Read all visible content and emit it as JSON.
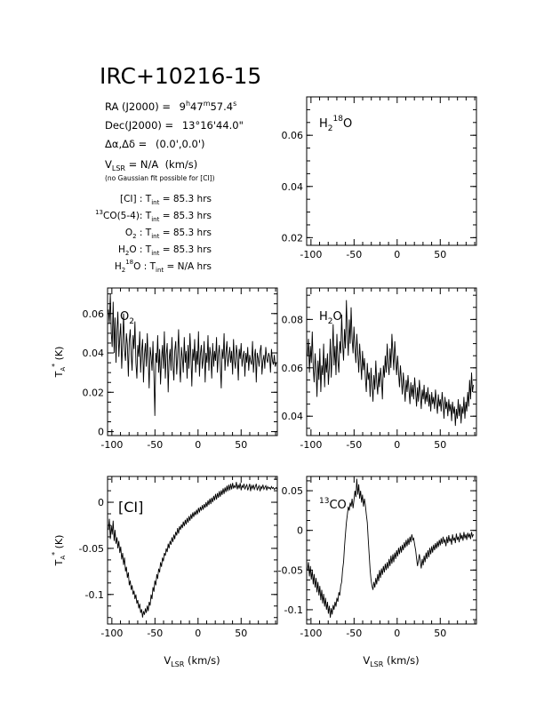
{
  "header": {
    "title": "IRC+10216-15",
    "ra_label": "RA (J2000)  =",
    "ra_value": "9",
    "ra_h": "h",
    "ra_m_value": "47",
    "ra_m": "m",
    "ra_s_value": "57.4",
    "ra_s": "s",
    "dec_label": "Dec(J2000)  =",
    "dec_value": "13°16'44.0\"",
    "offset_label": "Δα,Δδ  =",
    "offset_value": "(0.0',0.0')",
    "vlsr_label": "V",
    "vlsr_sub": "LSR",
    "vlsr_value": " = N/A  (km/s)",
    "note": "(no Gaussian fit possible for [CI])",
    "integrations": [
      {
        "label": "[CI] : T",
        "sub": "int",
        "value": "= 85.3 hrs"
      },
      {
        "label": "CO(5-4): T",
        "sup": "13",
        "sub": "int",
        "value": "= 85.3 hrs"
      },
      {
        "label": "O",
        "sub2": "2",
        "label2": " : T",
        "sub": "int",
        "value": "= 85.3 hrs"
      },
      {
        "label": "H",
        "sub2": "2",
        "label2": "O : T",
        "sub": "int",
        "value": "= 85.3 hrs"
      },
      {
        "label": "H",
        "sub2": "2",
        "sup": "18",
        "label2": "O : T",
        "sub": "int",
        "value": "= N/A hrs"
      }
    ]
  },
  "axis_text": {
    "ylabel": "T",
    "ylabel_sub": "A",
    "ylabel_sup": "*",
    "ylabel_unit": " (K)",
    "xlabel": "V",
    "xlabel_sub": "LSR",
    "xlabel_unit": " (km/s)"
  },
  "chart_data": [
    {
      "type": "line",
      "label": "H218O",
      "label_main": "H",
      "label_sub": "2",
      "label_sup": "18",
      "label_end": "O",
      "xlim": [
        -105,
        92
      ],
      "ylim": [
        0.017,
        0.075
      ],
      "xticks": [
        -100,
        -50,
        0,
        50
      ],
      "yticks": [
        0.02,
        0.04,
        0.06
      ],
      "ytick_labels": [
        "0.02",
        "0.04",
        "0.06"
      ],
      "has_data": false,
      "series": []
    },
    {
      "type": "line",
      "label": "O2",
      "label_main": "O",
      "label_sub": "2",
      "xlim": [
        -105,
        92
      ],
      "ylim": [
        -0.002,
        0.073
      ],
      "xticks": [
        -100,
        -50,
        0,
        50
      ],
      "yticks": [
        0,
        0.02,
        0.04,
        0.06
      ],
      "ytick_labels": [
        "0",
        "0.02",
        "0.04",
        "0.06"
      ],
      "has_data": true,
      "x_start": -104,
      "x_step": 1.1,
      "values": [
        0.062,
        0.055,
        0.07,
        0.05,
        0.043,
        0.066,
        0.04,
        0.058,
        0.035,
        0.052,
        0.061,
        0.038,
        0.048,
        0.055,
        0.032,
        0.045,
        0.06,
        0.041,
        0.036,
        0.05,
        0.044,
        0.028,
        0.046,
        0.052,
        0.039,
        0.031,
        0.049,
        0.042,
        0.056,
        0.035,
        0.027,
        0.044,
        0.038,
        0.051,
        0.03,
        0.041,
        0.047,
        0.025,
        0.039,
        0.045,
        0.033,
        0.05,
        0.036,
        0.022,
        0.043,
        0.038,
        0.031,
        0.046,
        0.028,
        0.008,
        0.04,
        0.035,
        0.049,
        0.03,
        0.042,
        0.024,
        0.037,
        0.044,
        0.032,
        0.051,
        0.027,
        0.039,
        0.045,
        0.02,
        0.036,
        0.042,
        0.031,
        0.048,
        0.034,
        0.026,
        0.041,
        0.046,
        0.029,
        0.038,
        0.052,
        0.033,
        0.025,
        0.043,
        0.037,
        0.03,
        0.048,
        0.035,
        0.041,
        0.027,
        0.044,
        0.032,
        0.05,
        0.038,
        0.023,
        0.042,
        0.036,
        0.047,
        0.03,
        0.041,
        0.034,
        0.051,
        0.028,
        0.039,
        0.044,
        0.032,
        0.037,
        0.046,
        0.025,
        0.04,
        0.035,
        0.049,
        0.031,
        0.043,
        0.038,
        0.027,
        0.045,
        0.033,
        0.041,
        0.036,
        0.048,
        0.03,
        0.039,
        0.044,
        0.034,
        0.022,
        0.042,
        0.037,
        0.05,
        0.031,
        0.04,
        0.046,
        0.033,
        0.038,
        0.043,
        0.035,
        0.041,
        0.029,
        0.047,
        0.036,
        0.032,
        0.044,
        0.039,
        0.026,
        0.042,
        0.037,
        0.045,
        0.033,
        0.038,
        0.041,
        0.028,
        0.04,
        0.035,
        0.043,
        0.031,
        0.039,
        0.036,
        0.034,
        0.046,
        0.03,
        0.038,
        0.042,
        0.025,
        0.04,
        0.037,
        0.033,
        0.041,
        0.044,
        0.029,
        0.036,
        0.039,
        0.032,
        0.043,
        0.037,
        0.035,
        0.04,
        0.038,
        0.03,
        0.042,
        0.036,
        0.034,
        0.039,
        0.033,
        0.035
      ]
    },
    {
      "type": "line",
      "label": "H2O",
      "label_main": "H",
      "label_sub": "2",
      "label_end": "O",
      "xlim": [
        -105,
        92
      ],
      "ylim": [
        0.032,
        0.093
      ],
      "xticks": [
        -100,
        -50,
        0,
        50
      ],
      "yticks": [
        0.04,
        0.06,
        0.08
      ],
      "ytick_labels": [
        "0.04",
        "0.06",
        "0.08"
      ],
      "has_data": true,
      "x_start": -104,
      "x_step": 1.1,
      "values": [
        0.065,
        0.072,
        0.058,
        0.069,
        0.062,
        0.075,
        0.06,
        0.054,
        0.066,
        0.059,
        0.048,
        0.063,
        0.055,
        0.068,
        0.05,
        0.061,
        0.057,
        0.07,
        0.052,
        0.064,
        0.058,
        0.066,
        0.053,
        0.06,
        0.072,
        0.056,
        0.065,
        0.078,
        0.061,
        0.069,
        0.057,
        0.074,
        0.063,
        0.058,
        0.071,
        0.066,
        0.082,
        0.07,
        0.063,
        0.076,
        0.068,
        0.088,
        0.074,
        0.065,
        0.08,
        0.07,
        0.085,
        0.072,
        0.066,
        0.077,
        0.068,
        0.062,
        0.074,
        0.066,
        0.058,
        0.07,
        0.063,
        0.055,
        0.067,
        0.059,
        0.064,
        0.056,
        0.05,
        0.062,
        0.055,
        0.058,
        0.048,
        0.06,
        0.053,
        0.046,
        0.057,
        0.051,
        0.063,
        0.054,
        0.049,
        0.058,
        0.052,
        0.06,
        0.055,
        0.047,
        0.061,
        0.056,
        0.065,
        0.058,
        0.07,
        0.062,
        0.057,
        0.068,
        0.06,
        0.074,
        0.066,
        0.059,
        0.071,
        0.063,
        0.057,
        0.065,
        0.058,
        0.052,
        0.061,
        0.055,
        0.049,
        0.058,
        0.052,
        0.046,
        0.055,
        0.05,
        0.057,
        0.051,
        0.045,
        0.054,
        0.048,
        0.053,
        0.047,
        0.056,
        0.05,
        0.044,
        0.052,
        0.046,
        0.055,
        0.049,
        0.043,
        0.051,
        0.047,
        0.053,
        0.045,
        0.05,
        0.046,
        0.052,
        0.044,
        0.049,
        0.042,
        0.05,
        0.045,
        0.048,
        0.043,
        0.051,
        0.046,
        0.041,
        0.049,
        0.044,
        0.047,
        0.042,
        0.05,
        0.045,
        0.039,
        0.048,
        0.043,
        0.046,
        0.04,
        0.047,
        0.042,
        0.045,
        0.038,
        0.046,
        0.041,
        0.044,
        0.036,
        0.043,
        0.039,
        0.047,
        0.04,
        0.045,
        0.037,
        0.044,
        0.041,
        0.048,
        0.039,
        0.046,
        0.042,
        0.05,
        0.044,
        0.055,
        0.047,
        0.058,
        0.05,
        0.053
      ]
    },
    {
      "type": "line",
      "label": "[CI]",
      "xlim": [
        -105,
        92
      ],
      "ylim": [
        -0.132,
        0.028
      ],
      "xticks": [
        -100,
        -50,
        0,
        50
      ],
      "yticks": [
        -0.1,
        -0.05,
        0
      ],
      "ytick_labels": [
        "-0.1",
        "-0.05",
        "0"
      ],
      "has_data": true,
      "x_start": -104,
      "x_step": 1.1,
      "values": [
        -0.03,
        -0.018,
        -0.04,
        -0.025,
        -0.035,
        -0.02,
        -0.042,
        -0.03,
        -0.045,
        -0.038,
        -0.05,
        -0.042,
        -0.055,
        -0.048,
        -0.062,
        -0.055,
        -0.068,
        -0.06,
        -0.075,
        -0.07,
        -0.082,
        -0.076,
        -0.09,
        -0.085,
        -0.095,
        -0.09,
        -0.1,
        -0.096,
        -0.105,
        -0.1,
        -0.11,
        -0.106,
        -0.115,
        -0.11,
        -0.12,
        -0.116,
        -0.125,
        -0.118,
        -0.122,
        -0.115,
        -0.12,
        -0.112,
        -0.118,
        -0.108,
        -0.112,
        -0.1,
        -0.105,
        -0.092,
        -0.097,
        -0.085,
        -0.09,
        -0.078,
        -0.083,
        -0.072,
        -0.076,
        -0.065,
        -0.07,
        -0.06,
        -0.064,
        -0.055,
        -0.058,
        -0.05,
        -0.054,
        -0.045,
        -0.05,
        -0.042,
        -0.046,
        -0.038,
        -0.043,
        -0.035,
        -0.04,
        -0.032,
        -0.036,
        -0.028,
        -0.034,
        -0.026,
        -0.03,
        -0.024,
        -0.028,
        -0.021,
        -0.026,
        -0.019,
        -0.024,
        -0.017,
        -0.022,
        -0.015,
        -0.02,
        -0.013,
        -0.018,
        -0.011,
        -0.016,
        -0.01,
        -0.014,
        -0.008,
        -0.013,
        -0.006,
        -0.011,
        -0.005,
        -0.009,
        -0.003,
        -0.008,
        -0.002,
        -0.006,
        0.0,
        -0.005,
        0.002,
        -0.003,
        0.004,
        -0.002,
        0.005,
        0.0,
        0.007,
        0.002,
        0.009,
        0.003,
        0.01,
        0.005,
        0.012,
        0.006,
        0.013,
        0.008,
        0.015,
        0.009,
        0.016,
        0.011,
        0.018,
        0.012,
        0.019,
        0.013,
        0.02,
        0.014,
        0.021,
        0.015,
        0.018,
        0.016,
        0.022,
        0.014,
        0.019,
        0.015,
        0.021,
        0.013,
        0.018,
        0.016,
        0.02,
        0.014,
        0.017,
        0.019,
        0.013,
        0.016,
        0.02,
        0.012,
        0.018,
        0.015,
        0.019,
        0.014,
        0.017,
        0.02,
        0.013,
        0.016,
        0.018,
        0.012,
        0.017,
        0.015,
        0.019,
        0.014,
        0.016,
        0.018,
        0.013,
        0.017,
        0.015,
        0.016,
        0.014,
        0.017,
        0.015,
        0.016,
        0.014,
        0.015,
        0.016,
        0.014,
        0.015
      ]
    },
    {
      "type": "line",
      "label": "13CO",
      "label_sup": "13",
      "label_main": "CO",
      "xlim": [
        -105,
        92
      ],
      "ylim": [
        -0.118,
        0.068
      ],
      "xticks": [
        -100,
        -50,
        0,
        50
      ],
      "yticks": [
        -0.1,
        -0.05,
        0,
        0.05
      ],
      "ytick_labels": [
        "-0.1",
        "-0.05",
        "0",
        "0.05"
      ],
      "has_data": true,
      "x_start": -104,
      "x_step": 1.1,
      "values": [
        -0.05,
        -0.04,
        -0.058,
        -0.045,
        -0.062,
        -0.05,
        -0.068,
        -0.055,
        -0.072,
        -0.06,
        -0.078,
        -0.065,
        -0.082,
        -0.07,
        -0.088,
        -0.075,
        -0.092,
        -0.08,
        -0.096,
        -0.085,
        -0.1,
        -0.09,
        -0.105,
        -0.095,
        -0.11,
        -0.098,
        -0.106,
        -0.094,
        -0.1,
        -0.09,
        -0.096,
        -0.085,
        -0.09,
        -0.078,
        -0.082,
        -0.07,
        -0.065,
        -0.05,
        -0.04,
        -0.02,
        -0.005,
        0.01,
        0.02,
        0.03,
        0.025,
        0.035,
        0.03,
        0.04,
        0.028,
        0.038,
        0.05,
        0.042,
        0.065,
        0.045,
        0.058,
        0.04,
        0.05,
        0.035,
        0.045,
        0.03,
        0.04,
        0.032,
        0.02,
        0.01,
        -0.01,
        -0.03,
        -0.05,
        -0.062,
        -0.07,
        -0.075,
        -0.065,
        -0.072,
        -0.06,
        -0.068,
        -0.055,
        -0.064,
        -0.05,
        -0.06,
        -0.048,
        -0.056,
        -0.045,
        -0.053,
        -0.042,
        -0.05,
        -0.04,
        -0.048,
        -0.036,
        -0.045,
        -0.032,
        -0.042,
        -0.03,
        -0.04,
        -0.028,
        -0.036,
        -0.025,
        -0.033,
        -0.022,
        -0.03,
        -0.02,
        -0.028,
        -0.018,
        -0.025,
        -0.015,
        -0.022,
        -0.012,
        -0.02,
        -0.01,
        -0.018,
        -0.008,
        -0.015,
        -0.005,
        -0.012,
        -0.01,
        -0.018,
        -0.025,
        -0.035,
        -0.045,
        -0.038,
        -0.03,
        -0.04,
        -0.048,
        -0.036,
        -0.044,
        -0.032,
        -0.04,
        -0.028,
        -0.036,
        -0.025,
        -0.034,
        -0.022,
        -0.03,
        -0.02,
        -0.028,
        -0.018,
        -0.025,
        -0.016,
        -0.023,
        -0.014,
        -0.021,
        -0.012,
        -0.019,
        -0.01,
        -0.017,
        -0.008,
        -0.015,
        -0.012,
        -0.02,
        -0.008,
        -0.016,
        -0.006,
        -0.014,
        -0.01,
        -0.018,
        -0.005,
        -0.013,
        -0.009,
        -0.016,
        -0.004,
        -0.012,
        -0.008,
        -0.015,
        -0.003,
        -0.011,
        -0.006,
        -0.013,
        -0.002,
        -0.01,
        -0.005,
        -0.012,
        -0.003,
        -0.009,
        -0.004,
        -0.011,
        -0.002,
        -0.008,
        -0.005
      ]
    }
  ]
}
